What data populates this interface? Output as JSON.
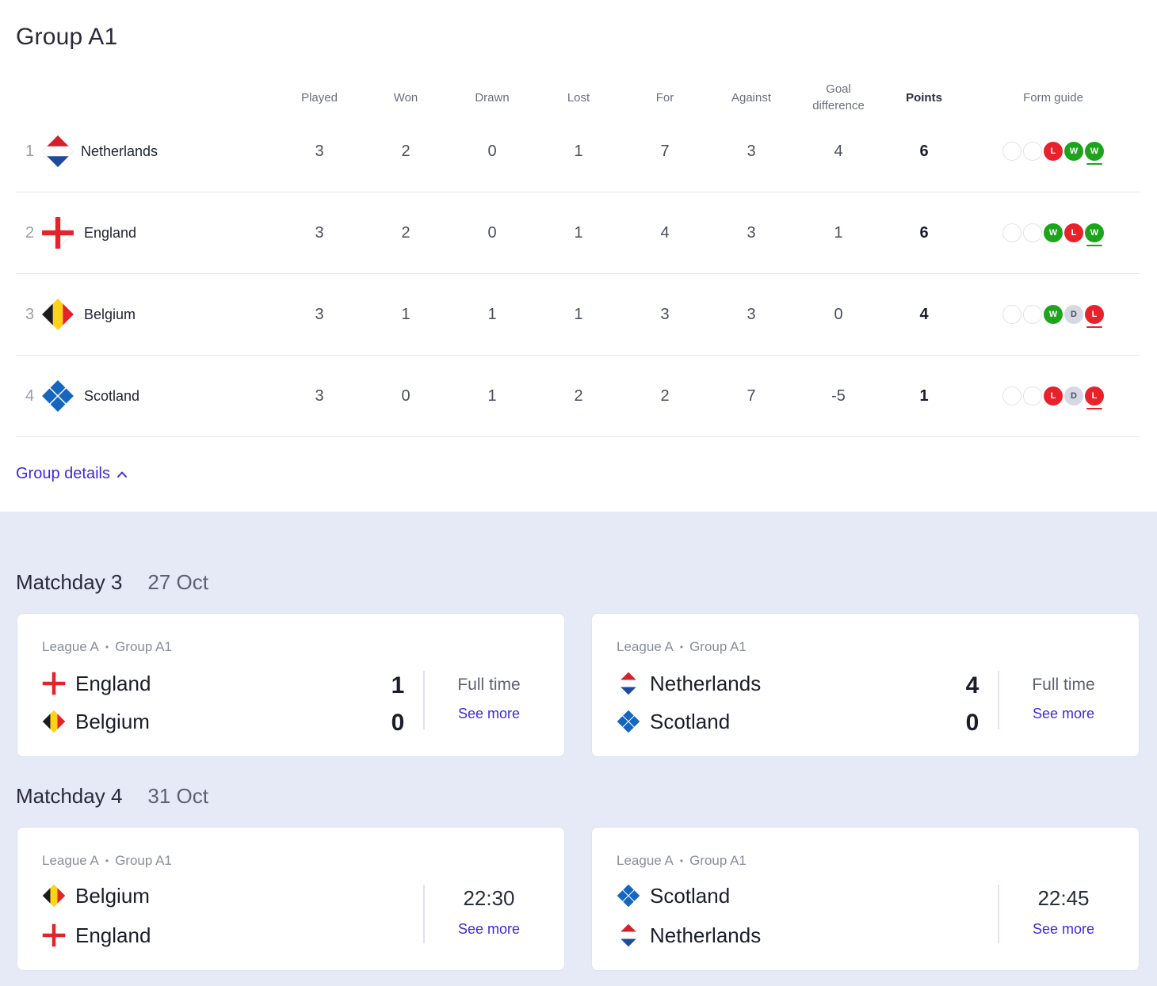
{
  "group": {
    "title": "Group A1",
    "headers": {
      "played": "Played",
      "won": "Won",
      "drawn": "Drawn",
      "lost": "Lost",
      "for": "For",
      "against": "Against",
      "goal_diff_1": "Goal",
      "goal_diff_2": "difference",
      "points": "Points",
      "form": "Form guide"
    },
    "rows": [
      {
        "rank": "1",
        "team": "Netherlands",
        "played": "3",
        "won": "2",
        "drawn": "0",
        "lost": "1",
        "for": "7",
        "against": "3",
        "gd": "4",
        "points": "6",
        "form": [
          "",
          "",
          "L",
          "W",
          "W"
        ]
      },
      {
        "rank": "2",
        "team": "England",
        "played": "3",
        "won": "2",
        "drawn": "0",
        "lost": "1",
        "for": "4",
        "against": "3",
        "gd": "1",
        "points": "6",
        "form": [
          "",
          "",
          "W",
          "L",
          "W"
        ]
      },
      {
        "rank": "3",
        "team": "Belgium",
        "played": "3",
        "won": "1",
        "drawn": "1",
        "lost": "1",
        "for": "3",
        "against": "3",
        "gd": "0",
        "points": "4",
        "form": [
          "",
          "",
          "W",
          "D",
          "L"
        ]
      },
      {
        "rank": "4",
        "team": "Scotland",
        "played": "3",
        "won": "0",
        "drawn": "1",
        "lost": "2",
        "for": "2",
        "against": "7",
        "gd": "-5",
        "points": "1",
        "form": [
          "",
          "",
          "L",
          "D",
          "L"
        ]
      }
    ],
    "details_link": "Group details"
  },
  "matchdays": [
    {
      "label": "Matchday 3",
      "date": "27 Oct",
      "matches": [
        {
          "league": "League A",
          "group": "Group A1",
          "home": "England",
          "away": "Belgium",
          "home_score": "1",
          "away_score": "0",
          "status": "Full time",
          "see_more": "See more"
        },
        {
          "league": "League A",
          "group": "Group A1",
          "home": "Netherlands",
          "away": "Scotland",
          "home_score": "4",
          "away_score": "0",
          "status": "Full time",
          "see_more": "See more"
        }
      ]
    },
    {
      "label": "Matchday 4",
      "date": "31 Oct",
      "matches": [
        {
          "league": "League A",
          "group": "Group A1",
          "home": "Belgium",
          "away": "England",
          "time": "22:30",
          "see_more": "See more"
        },
        {
          "league": "League A",
          "group": "Group A1",
          "home": "Scotland",
          "away": "Netherlands",
          "time": "22:45",
          "see_more": "See more"
        }
      ]
    }
  ],
  "colors": {
    "accent": "#3c2bd6",
    "win": "#1ca41c",
    "loss": "#e8212b",
    "draw": "#d6d9e3",
    "bottom_bg": "#e6eaf7"
  }
}
